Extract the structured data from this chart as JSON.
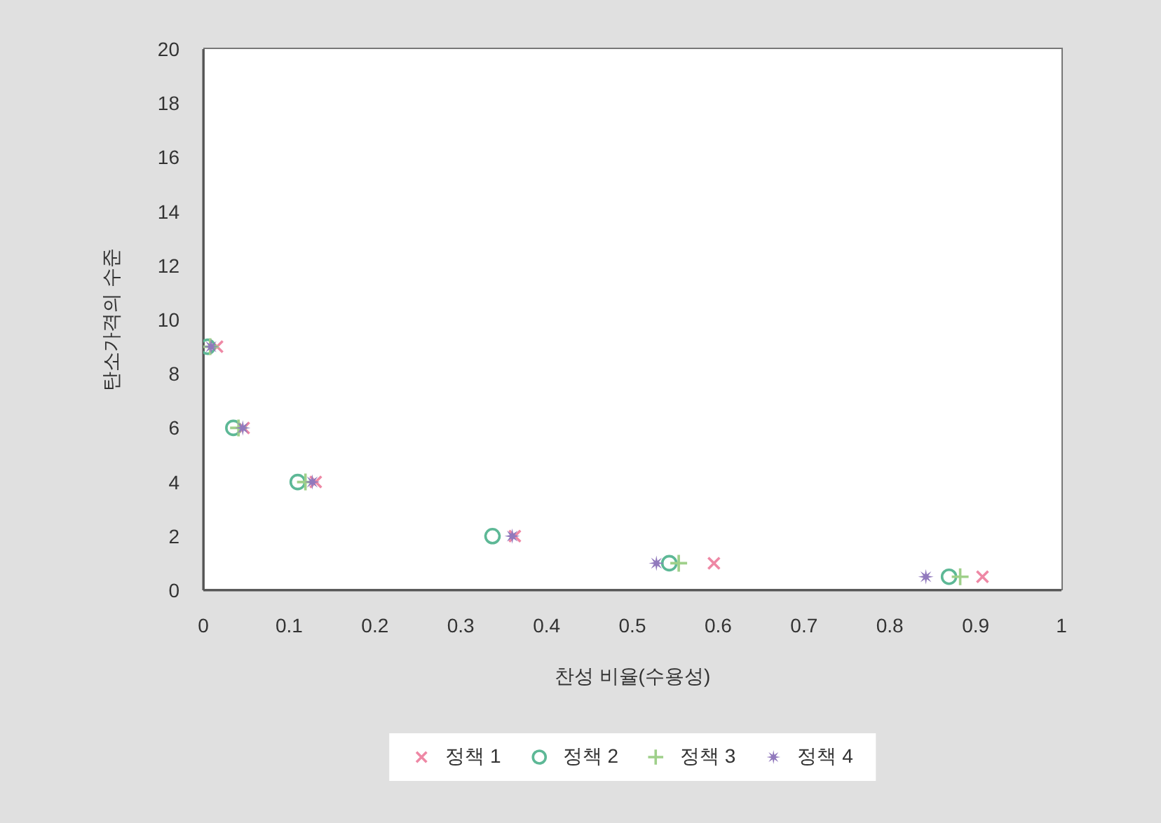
{
  "chart_data": {
    "type": "scatter",
    "xlabel": "찬성 비율(수용성)",
    "ylabel": "탄소가격의 수준",
    "xlim": [
      0,
      1
    ],
    "xticks": [
      0,
      0.1,
      0.2,
      0.3,
      0.4,
      0.5,
      0.6,
      0.7,
      0.8,
      0.9,
      1
    ],
    "ylim": [
      0,
      20
    ],
    "yticks": [
      0,
      2,
      4,
      6,
      8,
      10,
      12,
      14,
      16,
      18,
      20
    ],
    "legend": "bottom",
    "series": [
      {
        "name": "정책 1",
        "color": "#ee88a5",
        "marker": "cross",
        "x": [
          0.016,
          0.047,
          0.131,
          0.363,
          0.595,
          0.908
        ],
        "values": [
          9,
          6,
          4,
          2,
          1,
          0.5
        ]
      },
      {
        "name": "정책 2",
        "color": "#5db896",
        "marker": "circle",
        "x": [
          0.005,
          0.035,
          0.11,
          0.337,
          0.543,
          0.869
        ],
        "values": [
          9,
          6,
          4,
          2,
          1,
          0.5
        ]
      },
      {
        "name": "정책 3",
        "color": "#9fd08a",
        "marker": "plus",
        "x": [
          0.008,
          0.041,
          0.119,
          null,
          0.554,
          0.882
        ],
        "values": [
          9,
          6,
          4,
          null,
          1,
          0.5
        ]
      },
      {
        "name": "정책 4",
        "color": "#9179bd",
        "marker": "star",
        "x": [
          0.009,
          0.046,
          0.127,
          0.36,
          0.528,
          0.842
        ],
        "values": [
          9,
          6,
          4,
          2,
          1,
          0.5
        ]
      }
    ]
  }
}
